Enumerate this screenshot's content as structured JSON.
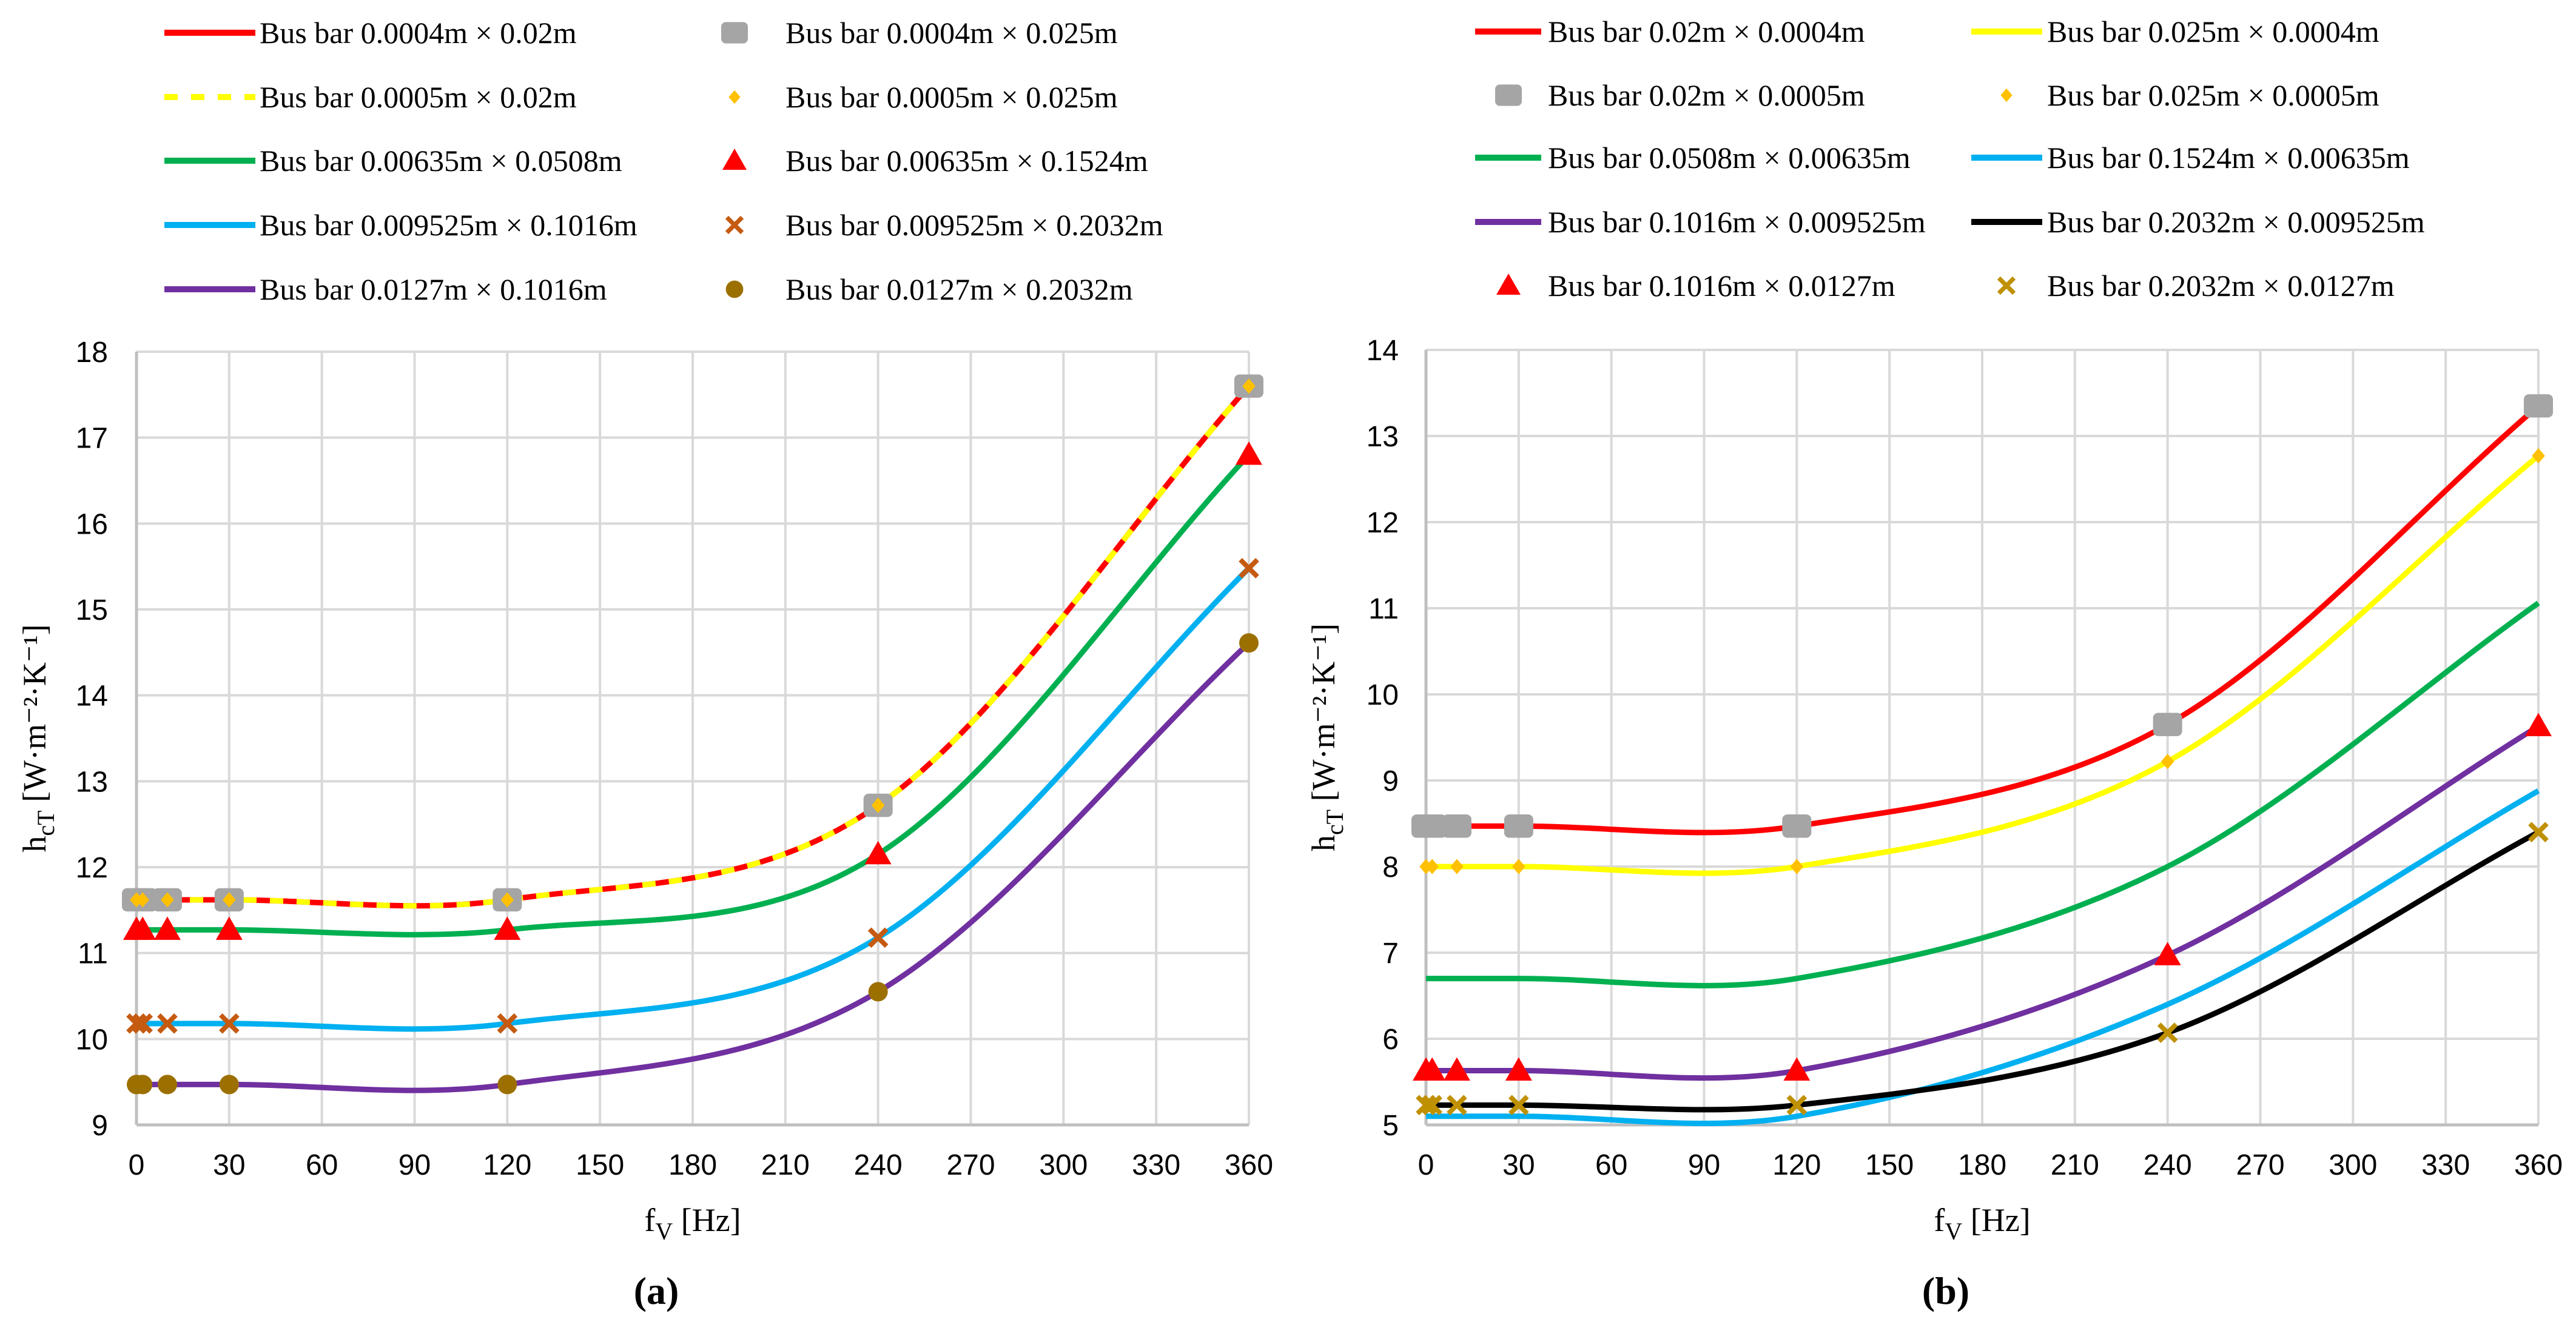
{
  "chart_data": [
    {
      "type": "line",
      "panel_label": "(a)",
      "xlabel_main": "f",
      "xlabel_sub": "V",
      "xlabel_unit": " [Hz]",
      "ylabel_main": "h",
      "ylabel_sub": "cT",
      "ylabel_unit": " [W·m⁻²·K⁻¹]",
      "xlim": [
        0,
        360
      ],
      "ylim": [
        9,
        18
      ],
      "xticks": [
        0,
        30,
        60,
        90,
        120,
        150,
        180,
        210,
        240,
        270,
        300,
        330,
        360
      ],
      "yticks": [
        9,
        10,
        11,
        12,
        13,
        14,
        15,
        16,
        17,
        18
      ],
      "grid": true,
      "legend_position": "top",
      "x": [
        0,
        2,
        10,
        30,
        120,
        240,
        360
      ],
      "series": [
        {
          "name": "Bus bar 0.0004m × 0.02m",
          "kind": "line",
          "color": "#FF0000",
          "dash": false,
          "y": [
            11.62,
            11.62,
            11.62,
            11.62,
            11.62,
            12.72,
            17.6
          ]
        },
        {
          "name": "Bus bar 0.0004m × 0.025m",
          "kind": "marker",
          "marker": "square",
          "color": "#A5A5A5",
          "y": [
            11.62,
            11.62,
            11.62,
            11.62,
            11.62,
            12.72,
            17.6
          ]
        },
        {
          "name": "Bus bar 0.0005m × 0.02m",
          "kind": "line",
          "color": "#FFFF00",
          "dash": true,
          "y": [
            11.62,
            11.62,
            11.62,
            11.62,
            11.62,
            12.72,
            17.6
          ]
        },
        {
          "name": "Bus bar 0.0005m × 0.025m",
          "kind": "marker",
          "marker": "diamond",
          "color": "#FFC000",
          "y": [
            11.62,
            11.62,
            11.62,
            11.62,
            11.62,
            12.72,
            17.6
          ]
        },
        {
          "name": "Bus bar 0.00635m × 0.0508m",
          "kind": "line",
          "color": "#00B050",
          "dash": false,
          "y": [
            11.27,
            11.27,
            11.27,
            11.27,
            11.27,
            12.15,
            16.8
          ]
        },
        {
          "name": "Bus bar 0.00635m × 0.1524m",
          "kind": "marker",
          "marker": "triangle",
          "color": "#FF0000",
          "y": [
            11.27,
            11.27,
            11.27,
            11.27,
            11.27,
            12.15,
            16.8
          ]
        },
        {
          "name": "Bus bar 0.009525m × 0.1016m",
          "kind": "line",
          "color": "#00B0F0",
          "dash": false,
          "y": [
            10.18,
            10.18,
            10.18,
            10.18,
            10.18,
            11.18,
            15.48
          ]
        },
        {
          "name": "Bus bar 0.009525m × 0.2032m",
          "kind": "marker",
          "marker": "cross",
          "color": "#C55A11",
          "y": [
            10.18,
            10.18,
            10.18,
            10.18,
            10.18,
            11.18,
            15.48
          ]
        },
        {
          "name": "Bus bar 0.0127m × 0.1016m",
          "kind": "line",
          "color": "#7030A0",
          "dash": false,
          "y": [
            9.47,
            9.47,
            9.47,
            9.47,
            9.47,
            10.55,
            14.61
          ]
        },
        {
          "name": "Bus bar 0.0127m × 0.2032m",
          "kind": "marker",
          "marker": "circle",
          "color": "#9C7000",
          "y": [
            9.47,
            9.47,
            9.47,
            9.47,
            9.47,
            10.55,
            14.61
          ]
        }
      ]
    },
    {
      "type": "line",
      "panel_label": "(b)",
      "xlabel_main": "f",
      "xlabel_sub": "V",
      "xlabel_unit": " [Hz]",
      "ylabel_main": "h",
      "ylabel_sub": "cT",
      "ylabel_unit": " [W·m⁻²·K⁻¹]",
      "xlim": [
        0,
        360
      ],
      "ylim": [
        5,
        14
      ],
      "xticks": [
        0,
        30,
        60,
        90,
        120,
        150,
        180,
        210,
        240,
        270,
        300,
        330,
        360
      ],
      "yticks": [
        5,
        6,
        7,
        8,
        9,
        10,
        11,
        12,
        13,
        14
      ],
      "grid": true,
      "legend_position": "top",
      "x": [
        0,
        2,
        10,
        30,
        120,
        240,
        360
      ],
      "series": [
        {
          "name": "Bus bar 0.02m × 0.0004m",
          "kind": "line",
          "color": "#FF0000",
          "dash": false,
          "y": [
            8.47,
            8.47,
            8.47,
            8.47,
            8.47,
            9.65,
            13.35
          ]
        },
        {
          "name": "Bus bar 0.025m × 0.0004m",
          "kind": "line",
          "color": "#FFFF00",
          "dash": false,
          "y": [
            8.0,
            8.0,
            8.0,
            8.0,
            8.0,
            9.22,
            12.77
          ]
        },
        {
          "name": "Bus bar 0.02m × 0.0005m",
          "kind": "marker",
          "marker": "square",
          "color": "#A5A5A5",
          "y": [
            8.47,
            8.47,
            8.47,
            8.47,
            8.47,
            9.65,
            13.35
          ]
        },
        {
          "name": "Bus bar 0.025m × 0.0005m",
          "kind": "marker",
          "marker": "diamond",
          "color": "#FFC000",
          "y": [
            8.0,
            8.0,
            8.0,
            8.0,
            8.0,
            9.22,
            12.77
          ]
        },
        {
          "name": "Bus bar 0.0508m × 0.00635m",
          "kind": "line",
          "color": "#00B050",
          "dash": false,
          "y": [
            6.7,
            6.7,
            6.7,
            6.7,
            6.7,
            8.0,
            11.06
          ]
        },
        {
          "name": "Bus bar 0.1524m × 0.00635m",
          "kind": "line",
          "color": "#00B0F0",
          "dash": false,
          "y": [
            5.1,
            5.1,
            5.1,
            5.1,
            5.1,
            6.4,
            8.88
          ]
        },
        {
          "name": "Bus bar 0.1016m × 0.009525m",
          "kind": "line",
          "color": "#7030A0",
          "dash": false,
          "y": [
            5.63,
            5.63,
            5.63,
            5.63,
            5.63,
            6.97,
            9.63
          ]
        },
        {
          "name": "Bus bar 0.2032m × 0.009525m",
          "kind": "line",
          "color": "#000000",
          "dash": false,
          "y": [
            5.23,
            5.23,
            5.23,
            5.23,
            5.23,
            6.07,
            8.4
          ]
        },
        {
          "name": "Bus bar 0.1016m × 0.0127m",
          "kind": "marker",
          "marker": "triangle",
          "color": "#FF0000",
          "y": [
            5.63,
            5.63,
            5.63,
            5.63,
            5.63,
            6.97,
            9.63
          ]
        },
        {
          "name": "Bus bar 0.2032m × 0.0127m",
          "kind": "marker",
          "marker": "cross",
          "color": "#BF9000",
          "y": [
            5.23,
            5.23,
            5.23,
            5.23,
            5.23,
            6.07,
            8.4
          ]
        }
      ]
    }
  ]
}
